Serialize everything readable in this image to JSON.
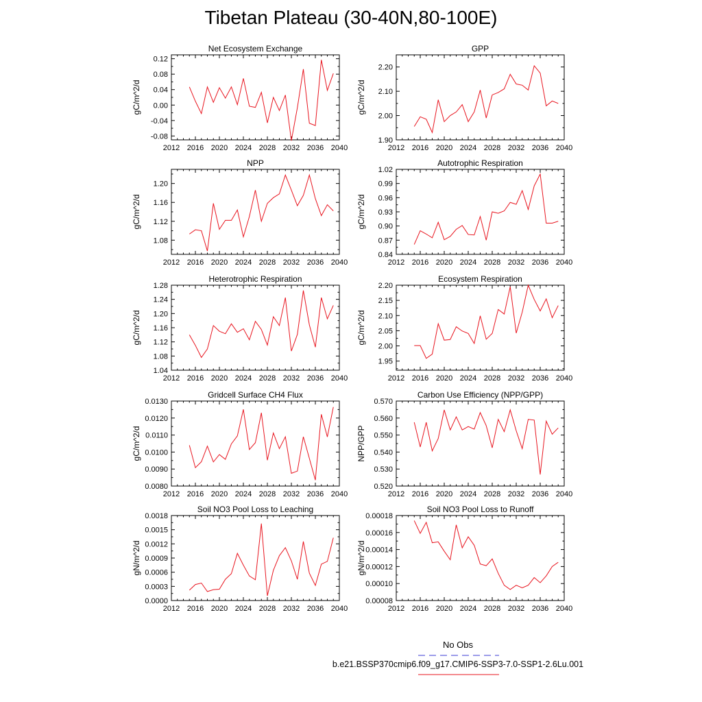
{
  "title": "Tibetan Plateau (30-40N,80-100E)",
  "legend": {
    "obs_label": "No Obs",
    "obs_color": "#3a3ad6",
    "model_label": "b.e21.BSSP370cmip6.f09_g17.CMIP6-SSP3-7.0-SSP1-2.6Lu.001",
    "model_color": "#e8141e"
  },
  "chart_data": [
    {
      "type": "line",
      "title": "Net Ecosystem Exchange",
      "ylabel": "gC/m^2/d",
      "xlim": [
        2012,
        2040
      ],
      "xticks": [
        "2012",
        "2016",
        "2020",
        "2024",
        "2028",
        "2032",
        "2036",
        "2040"
      ],
      "ylim": [
        -0.09,
        0.13
      ],
      "yticks": [
        "-0.08",
        "-0.04",
        "0.00",
        "0.04",
        "0.08",
        "0.12"
      ],
      "series": [
        {
          "x": [
            2015,
            2016,
            2017,
            2018,
            2019,
            2020,
            2021,
            2022,
            2023,
            2024,
            2025,
            2026,
            2027,
            2028,
            2029,
            2030,
            2031,
            2032,
            2033,
            2034,
            2035,
            2036,
            2037,
            2038,
            2039
          ],
          "values": [
            0.047,
            0.01,
            -0.022,
            0.047,
            0.007,
            0.045,
            0.018,
            0.047,
            0.001,
            0.069,
            -0.003,
            -0.006,
            0.033,
            -0.046,
            0.02,
            -0.014,
            0.026,
            -0.092,
            -0.007,
            0.093,
            -0.047,
            -0.053,
            0.117,
            0.038,
            0.082
          ]
        }
      ]
    },
    {
      "type": "line",
      "title": "GPP",
      "ylabel": "gC/m^2/d",
      "xlim": [
        2012,
        2040
      ],
      "xticks": [
        "2012",
        "2016",
        "2020",
        "2024",
        "2028",
        "2032",
        "2036",
        "2040"
      ],
      "ylim": [
        1.9,
        2.25
      ],
      "yticks": [
        "1.90",
        "2.00",
        "2.10",
        "2.20"
      ],
      "series": [
        {
          "x": [
            2015,
            2016,
            2017,
            2018,
            2019,
            2020,
            2021,
            2022,
            2023,
            2024,
            2025,
            2026,
            2027,
            2028,
            2029,
            2030,
            2031,
            2032,
            2033,
            2034,
            2035,
            2036,
            2037,
            2038,
            2039
          ],
          "values": [
            1.955,
            1.995,
            1.985,
            1.93,
            2.065,
            1.975,
            2.0,
            2.015,
            2.045,
            1.975,
            2.015,
            2.105,
            1.99,
            2.085,
            2.095,
            2.11,
            2.17,
            2.13,
            2.125,
            2.105,
            2.205,
            2.175,
            2.04,
            2.06,
            2.05
          ]
        }
      ]
    },
    {
      "type": "line",
      "title": "NPP",
      "ylabel": "gC/m^2/d",
      "xlim": [
        2012,
        2040
      ],
      "xticks": [
        "2012",
        "2016",
        "2020",
        "2024",
        "2028",
        "2032",
        "2036",
        "2040"
      ],
      "ylim": [
        1.05,
        1.23
      ],
      "yticks": [
        "1.08",
        "1.12",
        "1.16",
        "1.20"
      ],
      "series": [
        {
          "x": [
            2015,
            2016,
            2017,
            2018,
            2019,
            2020,
            2021,
            2022,
            2023,
            2024,
            2025,
            2026,
            2027,
            2028,
            2029,
            2030,
            2031,
            2032,
            2033,
            2034,
            2035,
            2036,
            2037,
            2038,
            2039
          ],
          "values": [
            1.093,
            1.102,
            1.1,
            1.057,
            1.158,
            1.103,
            1.122,
            1.122,
            1.144,
            1.087,
            1.13,
            1.186,
            1.12,
            1.158,
            1.17,
            1.178,
            1.218,
            1.186,
            1.153,
            1.175,
            1.218,
            1.168,
            1.132,
            1.155,
            1.142
          ]
        }
      ]
    },
    {
      "type": "line",
      "title": "Autotrophic Respiration",
      "ylabel": "gC/m^2/d",
      "xlim": [
        2012,
        2040
      ],
      "xticks": [
        "2012",
        "2016",
        "2020",
        "2024",
        "2028",
        "2032",
        "2036",
        "2040"
      ],
      "ylim": [
        0.84,
        1.02
      ],
      "yticks": [
        "0.84",
        "0.87",
        "0.90",
        "0.93",
        "0.96",
        "0.99",
        "1.02"
      ],
      "series": [
        {
          "x": [
            2015,
            2016,
            2017,
            2018,
            2019,
            2020,
            2021,
            2022,
            2023,
            2024,
            2025,
            2026,
            2027,
            2028,
            2029,
            2030,
            2031,
            2032,
            2033,
            2034,
            2035,
            2036,
            2037,
            2038,
            2039
          ],
          "values": [
            0.861,
            0.89,
            0.883,
            0.875,
            0.908,
            0.871,
            0.878,
            0.893,
            0.901,
            0.882,
            0.881,
            0.92,
            0.87,
            0.93,
            0.927,
            0.932,
            0.95,
            0.946,
            0.975,
            0.935,
            0.985,
            1.01,
            0.906,
            0.906,
            0.91
          ]
        }
      ]
    },
    {
      "type": "line",
      "title": "Heterotrophic Respiration",
      "ylabel": "gC/m^2/d",
      "xlim": [
        2012,
        2040
      ],
      "xticks": [
        "2012",
        "2016",
        "2020",
        "2024",
        "2028",
        "2032",
        "2036",
        "2040"
      ],
      "ylim": [
        1.04,
        1.28
      ],
      "yticks": [
        "1.04",
        "1.08",
        "1.12",
        "1.16",
        "1.20",
        "1.24",
        "1.28"
      ],
      "series": [
        {
          "x": [
            2015,
            2016,
            2017,
            2018,
            2019,
            2020,
            2021,
            2022,
            2023,
            2024,
            2025,
            2026,
            2027,
            2028,
            2029,
            2030,
            2031,
            2032,
            2033,
            2034,
            2035,
            2036,
            2037,
            2038,
            2039
          ],
          "values": [
            1.14,
            1.11,
            1.076,
            1.1,
            1.166,
            1.15,
            1.143,
            1.171,
            1.147,
            1.157,
            1.126,
            1.178,
            1.155,
            1.111,
            1.191,
            1.166,
            1.245,
            1.094,
            1.141,
            1.265,
            1.168,
            1.105,
            1.245,
            1.185,
            1.223
          ]
        }
      ]
    },
    {
      "type": "line",
      "title": "Ecosystem Respiration",
      "ylabel": "gC/m^2/d",
      "xlim": [
        2012,
        2040
      ],
      "xticks": [
        "2012",
        "2016",
        "2020",
        "2024",
        "2028",
        "2032",
        "2036",
        "2040"
      ],
      "ylim": [
        1.92,
        2.2
      ],
      "yticks": [
        "1.95",
        "2.00",
        "2.05",
        "2.10",
        "2.15",
        "2.20"
      ],
      "series": [
        {
          "x": [
            2015,
            2016,
            2017,
            2018,
            2019,
            2020,
            2021,
            2022,
            2023,
            2024,
            2025,
            2026,
            2027,
            2028,
            2029,
            2030,
            2031,
            2032,
            2033,
            2034,
            2035,
            2036,
            2037,
            2038,
            2039
          ],
          "values": [
            2.001,
            2.001,
            1.959,
            1.973,
            2.073,
            2.019,
            2.021,
            2.063,
            2.049,
            2.041,
            2.008,
            2.099,
            2.022,
            2.041,
            2.12,
            2.105,
            2.195,
            2.042,
            2.111,
            2.2,
            2.153,
            2.115,
            2.155,
            2.093,
            2.133
          ]
        }
      ]
    },
    {
      "type": "line",
      "title": "Gridcell Surface CH4 Flux",
      "ylabel": "gC/m^2/d",
      "xlim": [
        2012,
        2040
      ],
      "xticks": [
        "2012",
        "2016",
        "2020",
        "2024",
        "2028",
        "2032",
        "2036",
        "2040"
      ],
      "ylim": [
        0.008,
        0.013
      ],
      "yticks": [
        "0.0080",
        "0.0090",
        "0.0100",
        "0.0110",
        "0.0120",
        "0.0130"
      ],
      "series": [
        {
          "x": [
            2015,
            2016,
            2017,
            2018,
            2019,
            2020,
            2021,
            2022,
            2023,
            2024,
            2025,
            2026,
            2027,
            2028,
            2029,
            2030,
            2031,
            2032,
            2033,
            2034,
            2035,
            2036,
            2037,
            2038,
            2039
          ],
          "values": [
            0.0104,
            0.00908,
            0.00943,
            0.01035,
            0.00942,
            0.00985,
            0.00957,
            0.01048,
            0.01095,
            0.01251,
            0.01015,
            0.01055,
            0.01231,
            0.00952,
            0.01112,
            0.0102,
            0.0109,
            0.00875,
            0.00888,
            0.0109,
            0.00963,
            0.00835,
            0.01222,
            0.01089,
            0.01265
          ]
        }
      ]
    },
    {
      "type": "line",
      "title": "Carbon Use Efficiency (NPP/GPP)",
      "ylabel": "NPP/GPP",
      "xlim": [
        2012,
        2040
      ],
      "xticks": [
        "2012",
        "2016",
        "2020",
        "2024",
        "2028",
        "2032",
        "2036",
        "2040"
      ],
      "ylim": [
        0.52,
        0.57
      ],
      "yticks": [
        "0.520",
        "0.530",
        "0.540",
        "0.550",
        "0.560",
        "0.570"
      ],
      "series": [
        {
          "x": [
            2015,
            2016,
            2017,
            2018,
            2019,
            2020,
            2021,
            2022,
            2023,
            2024,
            2025,
            2026,
            2027,
            2028,
            2029,
            2030,
            2031,
            2032,
            2033,
            2034,
            2035,
            2036,
            2037,
            2038,
            2039
          ],
          "values": [
            0.5575,
            0.543,
            0.5575,
            0.5407,
            0.548,
            0.5648,
            0.553,
            0.5607,
            0.553,
            0.555,
            0.5535,
            0.5632,
            0.5555,
            0.5425,
            0.5592,
            0.552,
            0.5648,
            0.5525,
            0.542,
            0.5592,
            0.5588,
            0.5268,
            0.5582,
            0.5505,
            0.5542
          ]
        }
      ]
    },
    {
      "type": "line",
      "title": "Soil NO3 Pool Loss to Leaching",
      "ylabel": "gN/m^2/d",
      "xlim": [
        2012,
        2040
      ],
      "xticks": [
        "2012",
        "2016",
        "2020",
        "2024",
        "2028",
        "2032",
        "2036",
        "2040"
      ],
      "ylim": [
        0.0,
        0.0018
      ],
      "yticks": [
        "0.0000",
        "0.0003",
        "0.0006",
        "0.0009",
        "0.0012",
        "0.0015",
        "0.0018"
      ],
      "series": [
        {
          "x": [
            2015,
            2016,
            2017,
            2018,
            2019,
            2020,
            2021,
            2022,
            2023,
            2024,
            2025,
            2026,
            2027,
            2028,
            2029,
            2030,
            2031,
            2032,
            2033,
            2034,
            2035,
            2036,
            2037,
            2038,
            2039
          ],
          "values": [
            0.00022,
            0.00034,
            0.00037,
            0.00019,
            0.00023,
            0.00024,
            0.00045,
            0.00057,
            0.001,
            0.00075,
            0.00052,
            0.00044,
            0.00163,
            0.0001,
            0.00064,
            0.00095,
            0.00112,
            0.00084,
            0.00045,
            0.00125,
            0.00058,
            0.00032,
            0.00077,
            0.00083,
            0.00133
          ]
        }
      ]
    },
    {
      "type": "line",
      "title": "Soil NO3 Pool Loss to Runoff",
      "ylabel": "gN/m^2/d",
      "xlim": [
        2012,
        2040
      ],
      "xticks": [
        "2012",
        "2016",
        "2020",
        "2024",
        "2028",
        "2032",
        "2036",
        "2040"
      ],
      "ylim": [
        8e-05,
        0.00018
      ],
      "yticks": [
        "0.00008",
        "0.00010",
        "0.00012",
        "0.00014",
        "0.00016",
        "0.00018"
      ],
      "series": [
        {
          "x": [
            2015,
            2016,
            2017,
            2018,
            2019,
            2020,
            2021,
            2022,
            2023,
            2024,
            2025,
            2026,
            2027,
            2028,
            2029,
            2030,
            2031,
            2032,
            2033,
            2034,
            2035,
            2036,
            2037,
            2038,
            2039
          ],
          "values": [
            0.000174,
            0.000159,
            0.000172,
            0.000148,
            0.000149,
            0.000138,
            0.000128,
            0.000169,
            0.000142,
            0.000155,
            0.000145,
            0.000123,
            0.000121,
            0.000129,
            0.000112,
            9.8e-05,
            9.3e-05,
            9.8e-05,
            9.5e-05,
            9.8e-05,
            0.000107,
            0.000101,
            0.000109,
            0.00012,
            0.000125
          ]
        }
      ]
    }
  ]
}
